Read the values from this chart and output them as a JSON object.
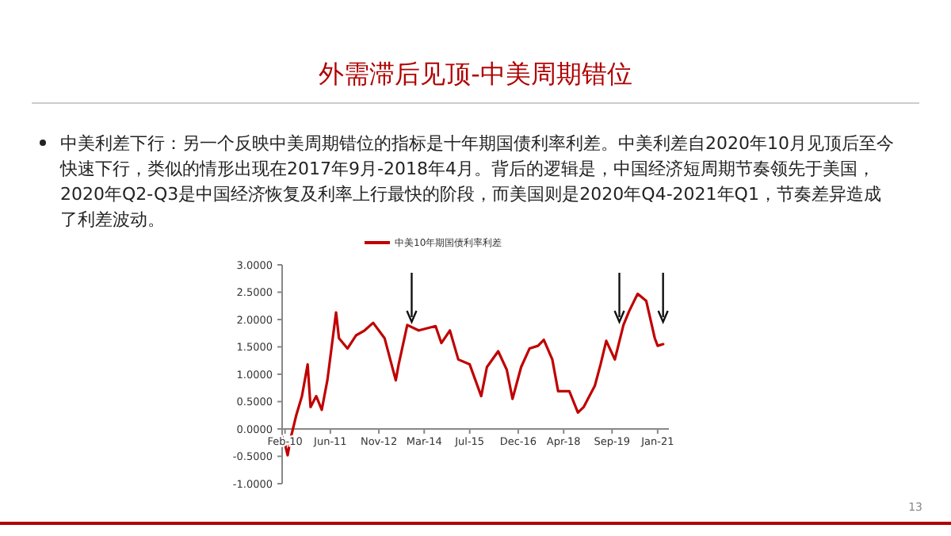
{
  "chart_data": {
    "type": "line",
    "title": "外需滞后见顶-中美周期错位",
    "annotations": [
      "中美利差下行：另一个反映中美周期错位的指标是十年期国债利率利差。中美利差自2020年10月见顶后至今快速下行，类似的情形出现在2017年9月-2018年4月。背后的逻辑是，中国经济短周期节奏领先于美国，2020年Q2-Q3是中国经济恢复及利率上行最快的阶段，而美国则是2020年Q4-2021年Q1，节奏差异造成了利差波动。",
      "13"
    ],
    "x": [
      "2010-01",
      "2010-02",
      "2010-03",
      "2010-04",
      "2010-06",
      "2010-08",
      "2010-10",
      "2010-11",
      "2011-01",
      "2011-03",
      "2011-05",
      "2011-08",
      "2011-09",
      "2011-12",
      "2012-03",
      "2012-06",
      "2012-09",
      "2013-01",
      "2013-05",
      "2013-06",
      "2013-09",
      "2014-01",
      "2014-07",
      "2014-09",
      "2014-12",
      "2015-03",
      "2015-07",
      "2015-11",
      "2016-01",
      "2016-05",
      "2016-08",
      "2016-10",
      "2017-01",
      "2017-04",
      "2017-07",
      "2017-09",
      "2017-12",
      "2018-02",
      "2018-06",
      "2018-09",
      "2018-11",
      "2019-03",
      "2019-05",
      "2019-07",
      "2019-10",
      "2020-01",
      "2020-03",
      "2020-06",
      "2020-09",
      "2020-12",
      "2021-01",
      "2021-03"
    ],
    "series": [
      {
        "name": "中美10年期国债利率利差",
        "color": "#c00000",
        "values": [
          -0.14,
          -0.28,
          -0.48,
          -0.18,
          0.25,
          0.6,
          1.18,
          0.4,
          0.6,
          0.35,
          0.9,
          2.13,
          1.66,
          1.47,
          1.71,
          1.8,
          1.94,
          1.66,
          0.89,
          1.18,
          1.9,
          1.8,
          1.88,
          1.57,
          1.8,
          1.27,
          1.18,
          0.6,
          1.13,
          1.42,
          1.08,
          0.55,
          1.13,
          1.47,
          1.52,
          1.63,
          1.27,
          0.69,
          0.69,
          0.3,
          0.4,
          0.79,
          1.18,
          1.61,
          1.27,
          1.9,
          2.15,
          2.47,
          2.34,
          1.66,
          1.52,
          1.55
        ]
      }
    ],
    "xlim": [
      "2010-01",
      "2021-05"
    ],
    "xticks": [
      {
        "value": "2010-02",
        "label": "Feb-10"
      },
      {
        "value": "2011-06",
        "label": "Jun-11"
      },
      {
        "value": "2012-11",
        "label": "Nov-12"
      },
      {
        "value": "2014-03",
        "label": "Mar-14"
      },
      {
        "value": "2015-07",
        "label": "Jul-15"
      },
      {
        "value": "2016-12",
        "label": "Dec-16"
      },
      {
        "value": "2018-04",
        "label": "Apr-18"
      },
      {
        "value": "2019-09",
        "label": "Sep-19"
      },
      {
        "value": "2021-01",
        "label": "Jan-21"
      }
    ],
    "ylim": [
      -1,
      3
    ],
    "yticks": [
      {
        "value": -1,
        "label": "-1.0000"
      },
      {
        "value": -0.5,
        "label": "-0.5000"
      },
      {
        "value": 0,
        "label": "0.0000"
      },
      {
        "value": 0.5,
        "label": "0.5000"
      },
      {
        "value": 1,
        "label": "1.0000"
      },
      {
        "value": 1.5,
        "label": "1.5000"
      },
      {
        "value": 2,
        "label": "2.0000"
      },
      {
        "value": 2.5,
        "label": "2.5000"
      },
      {
        "value": 3,
        "label": "3.0000"
      }
    ],
    "legend": "top",
    "grid": false
  }
}
